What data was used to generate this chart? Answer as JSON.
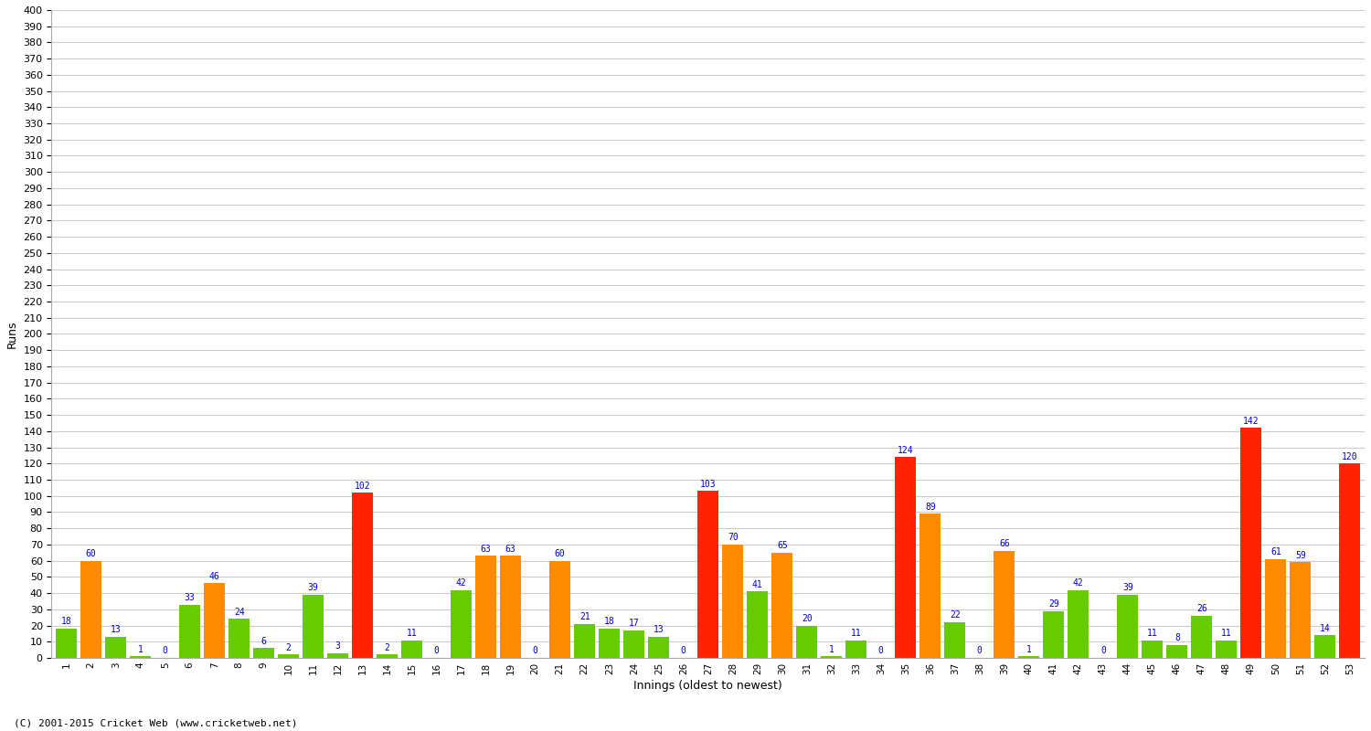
{
  "innings": [
    1,
    2,
    3,
    4,
    5,
    6,
    7,
    8,
    9,
    10,
    11,
    12,
    13,
    14,
    15,
    16,
    17,
    18,
    19,
    20,
    21,
    22,
    23,
    24,
    25,
    26,
    27,
    28,
    29,
    30,
    31,
    32,
    33,
    34,
    35,
    36,
    37,
    38,
    39,
    40,
    41,
    42,
    43,
    44,
    45,
    46,
    47,
    48,
    49,
    50,
    51,
    52,
    53
  ],
  "scores": [
    18,
    60,
    13,
    1,
    0,
    33,
    46,
    24,
    6,
    2,
    39,
    3,
    102,
    2,
    11,
    0,
    42,
    63,
    63,
    0,
    60,
    21,
    18,
    17,
    13,
    0,
    103,
    70,
    41,
    65,
    20,
    1,
    11,
    0,
    124,
    89,
    22,
    0,
    66,
    1,
    29,
    42,
    0,
    39,
    11,
    8,
    26,
    11,
    142,
    61,
    59,
    14,
    120
  ],
  "bar_colors": [
    "#66cc00",
    "#ff8c00",
    "#66cc00",
    "#66cc00",
    "#66cc00",
    "#66cc00",
    "#ff8c00",
    "#66cc00",
    "#66cc00",
    "#66cc00",
    "#66cc00",
    "#66cc00",
    "#ff2200",
    "#66cc00",
    "#66cc00",
    "#66cc00",
    "#66cc00",
    "#ff8c00",
    "#ff8c00",
    "#66cc00",
    "#ff8c00",
    "#66cc00",
    "#66cc00",
    "#66cc00",
    "#66cc00",
    "#66cc00",
    "#ff2200",
    "#ff8c00",
    "#66cc00",
    "#ff8c00",
    "#66cc00",
    "#66cc00",
    "#66cc00",
    "#66cc00",
    "#ff2200",
    "#ff8c00",
    "#66cc00",
    "#66cc00",
    "#ff8c00",
    "#66cc00",
    "#66cc00",
    "#66cc00",
    "#66cc00",
    "#66cc00",
    "#66cc00",
    "#66cc00",
    "#66cc00",
    "#66cc00",
    "#ff2200",
    "#ff8c00",
    "#ff8c00",
    "#66cc00",
    "#ff2200"
  ],
  "ylabel": "Runs",
  "xlabel": "Innings (oldest to newest)",
  "ylim": [
    0,
    400
  ],
  "yticks": [
    0,
    10,
    20,
    30,
    40,
    50,
    60,
    70,
    80,
    90,
    100,
    110,
    120,
    130,
    140,
    150,
    160,
    170,
    180,
    190,
    200,
    210,
    220,
    230,
    240,
    250,
    260,
    270,
    280,
    290,
    300,
    310,
    320,
    330,
    340,
    350,
    360,
    370,
    380,
    390,
    400
  ],
  "background_color": "#ffffff",
  "grid_color": "#cccccc",
  "label_color": "#0000cc",
  "footer": "(C) 2001-2015 Cricket Web (www.cricketweb.net)"
}
